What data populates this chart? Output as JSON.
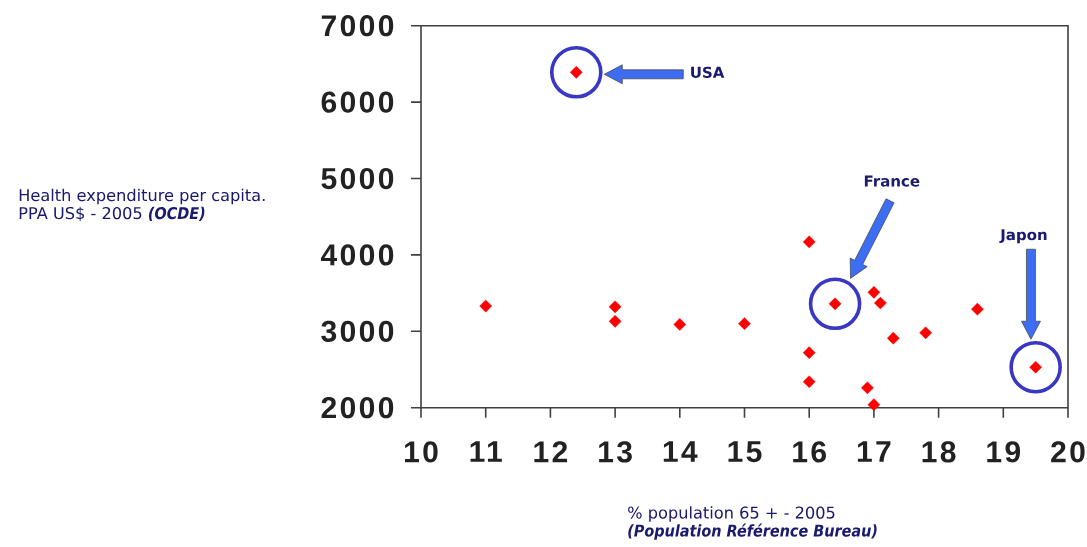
{
  "chart_data": {
    "type": "scatter",
    "xlabel": "% population 65 + - 2005 **(Population Référence Bureau)**",
    "ylabel": "Health expenditure per capita. PPA US$ - 2005 **(OCDE)**",
    "x": [
      12.4,
      11,
      13,
      13,
      14,
      15,
      16,
      16.4,
      17,
      17.1,
      18.6,
      17.3,
      17.8,
      16,
      16,
      16.9,
      17,
      19.5
    ],
    "values": [
      6390,
      3330,
      3320,
      3130,
      3090,
      3100,
      4170,
      3360,
      3510,
      3370,
      3290,
      2910,
      2980,
      2720,
      2340,
      2260,
      2040,
      2530
    ],
    "color": "#ff0000",
    "marker": "diamond",
    "xlim": [
      10,
      20
    ],
    "xticks": [
      10,
      11,
      12,
      13,
      14,
      15,
      16,
      17,
      18,
      19,
      20
    ],
    "ylim": [
      2000,
      7000
    ],
    "yticks": [
      2000,
      3000,
      4000,
      5000,
      6000,
      7000
    ],
    "annotations": [
      "USA",
      "France",
      "Japon"
    ]
  }
}
